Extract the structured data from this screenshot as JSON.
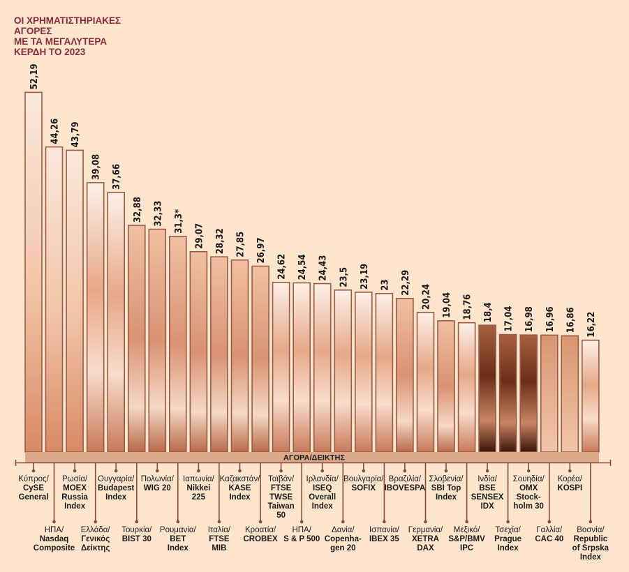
{
  "title": [
    "ΟΙ ΧΡΗΜΑΤΙΣΤΗΡΙΑΚΕΣ",
    "ΑΓΟΡΕΣ",
    "ΜΕ ΤΑ ΜΕΓΑΛΥΤΕΡΑ",
    "ΚΕΡΔΗ ΤΟ 2023"
  ],
  "chart_data": {
    "type": "bar",
    "title": "ΟΙ ΧΡΗΜΑΤΙΣΤΗΡΙΑΚΕΣ ΑΓΟΡΕΣ ΜΕ ΤΑ ΜΕΓΑΛΥΤΕΡΑ ΚΕΡΔΗ ΤΟ 2023",
    "xlabel": "ΑΓΟΡΑ/ΔΕΙΚΤΗΣ",
    "ylabel": "",
    "ylim": [
      0,
      52.19
    ],
    "grid": false,
    "categories": [
      {
        "country": "Κύπρος/",
        "index": "CySE\nGeneral"
      },
      {
        "country": "ΗΠΑ/",
        "index": "Nasdaq\nComposite"
      },
      {
        "country": "Ρωσία/",
        "index": "MOEX\nRussia\nIndex"
      },
      {
        "country": "Ελλάδα/",
        "index": "Γενικός\nΔείκτης"
      },
      {
        "country": "Ουγγαρία/",
        "index": "Budapest\nIndex"
      },
      {
        "country": "Τουρκία/",
        "index": "BIST 30"
      },
      {
        "country": "Πολωνία/",
        "index": "WIG 20"
      },
      {
        "country": "Ρουμανία/",
        "index": "BET\nIndex"
      },
      {
        "country": "Ιαπωνία/",
        "index": "Nikkei\n225"
      },
      {
        "country": "Ιταλία/",
        "index": "FTSE\nMIB"
      },
      {
        "country": "Καζακστάν/",
        "index": "KASE\nIndex"
      },
      {
        "country": "Κροατία/",
        "index": "CROBEX"
      },
      {
        "country": "Ταϊβάν/",
        "index": "FTSE\nTWSE\nTaiwan\n50"
      },
      {
        "country": "ΗΠΑ/",
        "index": "S & P 500"
      },
      {
        "country": "Ιρλανδία/",
        "index": "ISEQ\nOverall\nIndex"
      },
      {
        "country": "Δανία/",
        "index": "Copenha-\ngen 20"
      },
      {
        "country": "Βουλγαρία/",
        "index": "SOFIX"
      },
      {
        "country": "Ισπανία/",
        "index": "IBEX 35"
      },
      {
        "country": "Βραζιλία/",
        "index": "IBOVESPA"
      },
      {
        "country": "Γερμανία/",
        "index": "XETRA\nDAX"
      },
      {
        "country": "Σλοβενία/",
        "index": "SBI Top\nIndex"
      },
      {
        "country": "Μεξικό/",
        "index": "S&P/BMV\nIPC"
      },
      {
        "country": "Ινδία/",
        "index": "BSE\nSENSEX\nIDX"
      },
      {
        "country": "Τσεχία/",
        "index": "Prague\nIndex"
      },
      {
        "country": "Σουηδία/",
        "index": "OMX\nStock-\nholm 30"
      },
      {
        "country": "Γαλλία/",
        "index": "CAC 40"
      },
      {
        "country": "Κορέα/",
        "index": "KOSPI"
      },
      {
        "country": "Βοσνία/",
        "index": "Republic\nof Srpska\nIndex"
      }
    ],
    "values": [
      52.19,
      44.26,
      43.79,
      39.08,
      37.66,
      32.88,
      32.33,
      31.3,
      29.07,
      28.32,
      27.85,
      26.97,
      24.62,
      24.54,
      24.43,
      23.5,
      23.19,
      23,
      22.29,
      20.24,
      19.04,
      18.76,
      18.4,
      17.04,
      16.98,
      16.96,
      16.86,
      16.22
    ],
    "value_labels": [
      "52,19",
      "44,26",
      "43,79",
      "39,08",
      "37,66",
      "32,88",
      "32,33",
      "31,3*",
      "29,07",
      "28,32",
      "27,85",
      "26,97",
      "24,62",
      "24,54",
      "24,43",
      "23,5",
      "23,19",
      "23",
      "22,29",
      "20,24",
      "19,04",
      "18,76",
      "18,4",
      "17,04",
      "16,98",
      "16,96",
      "16,86",
      "16,22"
    ],
    "colors": {
      "title": "#8c2a3a",
      "bar_border": "#9a5a45",
      "base_strip": "#d9a98a",
      "axis": "#8a4a3a",
      "background": "#fde4cc"
    }
  }
}
